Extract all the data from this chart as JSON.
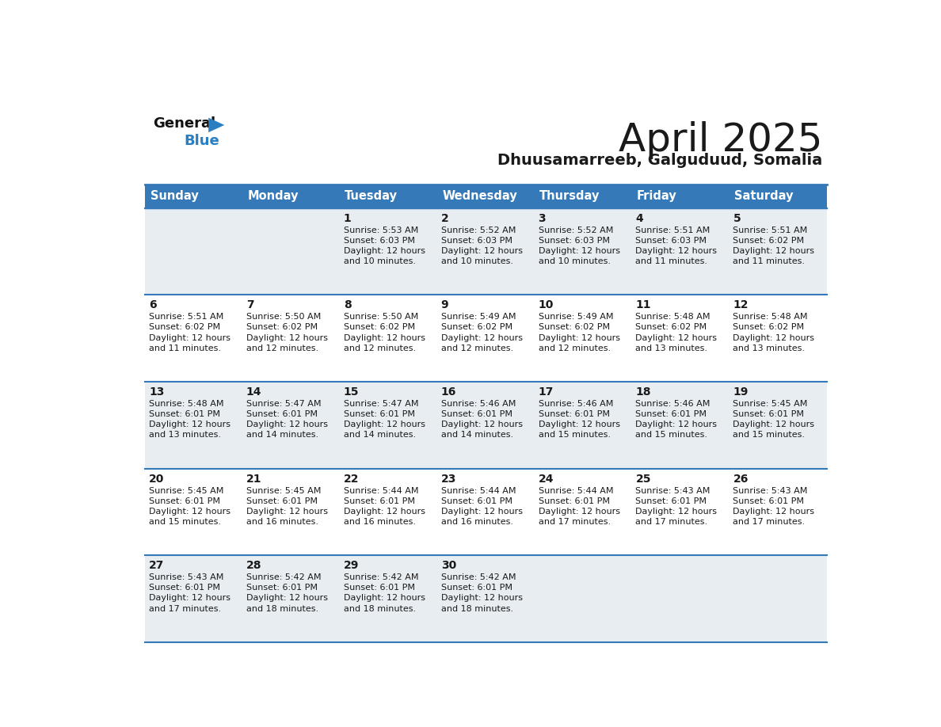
{
  "title": "April 2025",
  "subtitle": "Dhuusamarreeb, Galguduud, Somalia",
  "header_color": "#3579b8",
  "header_text_color": "#ffffff",
  "row_bg_odd": "#e8edf2",
  "row_bg_even": "#ffffff",
  "border_color": "#3579b8",
  "text_color": "#1a1a1a",
  "days_of_week": [
    "Sunday",
    "Monday",
    "Tuesday",
    "Wednesday",
    "Thursday",
    "Friday",
    "Saturday"
  ],
  "weeks": [
    [
      {
        "day": "",
        "sunrise": "",
        "sunset": "",
        "daylight": ""
      },
      {
        "day": "",
        "sunrise": "",
        "sunset": "",
        "daylight": ""
      },
      {
        "day": "1",
        "sunrise": "Sunrise: 5:53 AM",
        "sunset": "Sunset: 6:03 PM",
        "daylight": "Daylight: 12 hours\nand 10 minutes."
      },
      {
        "day": "2",
        "sunrise": "Sunrise: 5:52 AM",
        "sunset": "Sunset: 6:03 PM",
        "daylight": "Daylight: 12 hours\nand 10 minutes."
      },
      {
        "day": "3",
        "sunrise": "Sunrise: 5:52 AM",
        "sunset": "Sunset: 6:03 PM",
        "daylight": "Daylight: 12 hours\nand 10 minutes."
      },
      {
        "day": "4",
        "sunrise": "Sunrise: 5:51 AM",
        "sunset": "Sunset: 6:03 PM",
        "daylight": "Daylight: 12 hours\nand 11 minutes."
      },
      {
        "day": "5",
        "sunrise": "Sunrise: 5:51 AM",
        "sunset": "Sunset: 6:02 PM",
        "daylight": "Daylight: 12 hours\nand 11 minutes."
      }
    ],
    [
      {
        "day": "6",
        "sunrise": "Sunrise: 5:51 AM",
        "sunset": "Sunset: 6:02 PM",
        "daylight": "Daylight: 12 hours\nand 11 minutes."
      },
      {
        "day": "7",
        "sunrise": "Sunrise: 5:50 AM",
        "sunset": "Sunset: 6:02 PM",
        "daylight": "Daylight: 12 hours\nand 12 minutes."
      },
      {
        "day": "8",
        "sunrise": "Sunrise: 5:50 AM",
        "sunset": "Sunset: 6:02 PM",
        "daylight": "Daylight: 12 hours\nand 12 minutes."
      },
      {
        "day": "9",
        "sunrise": "Sunrise: 5:49 AM",
        "sunset": "Sunset: 6:02 PM",
        "daylight": "Daylight: 12 hours\nand 12 minutes."
      },
      {
        "day": "10",
        "sunrise": "Sunrise: 5:49 AM",
        "sunset": "Sunset: 6:02 PM",
        "daylight": "Daylight: 12 hours\nand 12 minutes."
      },
      {
        "day": "11",
        "sunrise": "Sunrise: 5:48 AM",
        "sunset": "Sunset: 6:02 PM",
        "daylight": "Daylight: 12 hours\nand 13 minutes."
      },
      {
        "day": "12",
        "sunrise": "Sunrise: 5:48 AM",
        "sunset": "Sunset: 6:02 PM",
        "daylight": "Daylight: 12 hours\nand 13 minutes."
      }
    ],
    [
      {
        "day": "13",
        "sunrise": "Sunrise: 5:48 AM",
        "sunset": "Sunset: 6:01 PM",
        "daylight": "Daylight: 12 hours\nand 13 minutes."
      },
      {
        "day": "14",
        "sunrise": "Sunrise: 5:47 AM",
        "sunset": "Sunset: 6:01 PM",
        "daylight": "Daylight: 12 hours\nand 14 minutes."
      },
      {
        "day": "15",
        "sunrise": "Sunrise: 5:47 AM",
        "sunset": "Sunset: 6:01 PM",
        "daylight": "Daylight: 12 hours\nand 14 minutes."
      },
      {
        "day": "16",
        "sunrise": "Sunrise: 5:46 AM",
        "sunset": "Sunset: 6:01 PM",
        "daylight": "Daylight: 12 hours\nand 14 minutes."
      },
      {
        "day": "17",
        "sunrise": "Sunrise: 5:46 AM",
        "sunset": "Sunset: 6:01 PM",
        "daylight": "Daylight: 12 hours\nand 15 minutes."
      },
      {
        "day": "18",
        "sunrise": "Sunrise: 5:46 AM",
        "sunset": "Sunset: 6:01 PM",
        "daylight": "Daylight: 12 hours\nand 15 minutes."
      },
      {
        "day": "19",
        "sunrise": "Sunrise: 5:45 AM",
        "sunset": "Sunset: 6:01 PM",
        "daylight": "Daylight: 12 hours\nand 15 minutes."
      }
    ],
    [
      {
        "day": "20",
        "sunrise": "Sunrise: 5:45 AM",
        "sunset": "Sunset: 6:01 PM",
        "daylight": "Daylight: 12 hours\nand 15 minutes."
      },
      {
        "day": "21",
        "sunrise": "Sunrise: 5:45 AM",
        "sunset": "Sunset: 6:01 PM",
        "daylight": "Daylight: 12 hours\nand 16 minutes."
      },
      {
        "day": "22",
        "sunrise": "Sunrise: 5:44 AM",
        "sunset": "Sunset: 6:01 PM",
        "daylight": "Daylight: 12 hours\nand 16 minutes."
      },
      {
        "day": "23",
        "sunrise": "Sunrise: 5:44 AM",
        "sunset": "Sunset: 6:01 PM",
        "daylight": "Daylight: 12 hours\nand 16 minutes."
      },
      {
        "day": "24",
        "sunrise": "Sunrise: 5:44 AM",
        "sunset": "Sunset: 6:01 PM",
        "daylight": "Daylight: 12 hours\nand 17 minutes."
      },
      {
        "day": "25",
        "sunrise": "Sunrise: 5:43 AM",
        "sunset": "Sunset: 6:01 PM",
        "daylight": "Daylight: 12 hours\nand 17 minutes."
      },
      {
        "day": "26",
        "sunrise": "Sunrise: 5:43 AM",
        "sunset": "Sunset: 6:01 PM",
        "daylight": "Daylight: 12 hours\nand 17 minutes."
      }
    ],
    [
      {
        "day": "27",
        "sunrise": "Sunrise: 5:43 AM",
        "sunset": "Sunset: 6:01 PM",
        "daylight": "Daylight: 12 hours\nand 17 minutes."
      },
      {
        "day": "28",
        "sunrise": "Sunrise: 5:42 AM",
        "sunset": "Sunset: 6:01 PM",
        "daylight": "Daylight: 12 hours\nand 18 minutes."
      },
      {
        "day": "29",
        "sunrise": "Sunrise: 5:42 AM",
        "sunset": "Sunset: 6:01 PM",
        "daylight": "Daylight: 12 hours\nand 18 minutes."
      },
      {
        "day": "30",
        "sunrise": "Sunrise: 5:42 AM",
        "sunset": "Sunset: 6:01 PM",
        "daylight": "Daylight: 12 hours\nand 18 minutes."
      },
      {
        "day": "",
        "sunrise": "",
        "sunset": "",
        "daylight": ""
      },
      {
        "day": "",
        "sunrise": "",
        "sunset": "",
        "daylight": ""
      },
      {
        "day": "",
        "sunrise": "",
        "sunset": "",
        "daylight": ""
      }
    ]
  ],
  "logo_color_general": "#111111",
  "logo_color_blue": "#2b7fc1",
  "logo_triangle_color": "#2b7fc1",
  "fig_width": 11.88,
  "fig_height": 9.18,
  "dpi": 100
}
